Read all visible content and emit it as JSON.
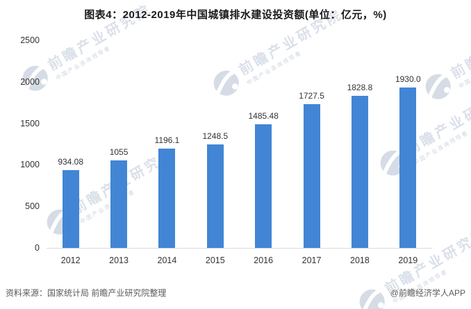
{
  "title": "图表4：2012-2019年中国城镇排水建设投资额(单位：亿元，%)",
  "chart_data": {
    "type": "bar",
    "title": "图表4：2012-2019年中国城镇排水建设投资额(单位：亿元，%)",
    "categories": [
      "2012",
      "2013",
      "2014",
      "2015",
      "2016",
      "2017",
      "2018",
      "2019"
    ],
    "values": [
      934.08,
      1055,
      1196.1,
      1248.5,
      1485.48,
      1727.5,
      1828.8,
      1930.0
    ],
    "value_labels": [
      "934.08",
      "1055",
      "1196.1",
      "1248.5",
      "1485.48",
      "1727.5",
      "1828.8",
      "1930.0"
    ],
    "xlabel": "",
    "ylabel": "",
    "ylim": [
      0,
      2500
    ],
    "y_ticks": [
      0,
      500,
      1000,
      1500,
      2000,
      2500
    ],
    "grid": false,
    "legend": "none",
    "bar_color": "#4285d5",
    "axis_line_color": "#d9d9d9",
    "label_color": "#333333"
  },
  "watermark": {
    "logo": "qianzhan-globe-icon",
    "text": "前瞻产业研究院",
    "subtext": "中国产业咨询领导者"
  },
  "footer": {
    "source": "资料来源：国家统计局 前瞻产业研究院整理",
    "credit": "@前瞻经济学人APP"
  }
}
